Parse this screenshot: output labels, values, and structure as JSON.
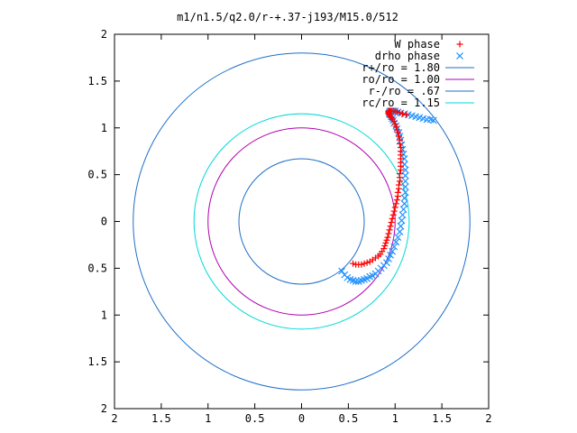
{
  "chart_data": {
    "type": "scatter",
    "title": "m1/n1.5/q2.0/r-+.37-j193/M15.0/512",
    "xlim": [
      -2,
      2
    ],
    "ylim": [
      -2,
      2
    ],
    "x_ticks": [
      -2,
      -1.5,
      -1,
      -0.5,
      0,
      0.5,
      1,
      1.5,
      2
    ],
    "y_ticks": [
      -2,
      -1.5,
      -1,
      -0.5,
      0,
      0.5,
      1,
      1.5,
      2
    ],
    "x_tick_labels": [
      "2",
      "1.5",
      "1",
      "0.5",
      "0",
      "0.5",
      "1",
      "1.5",
      "2"
    ],
    "y_tick_labels": [
      "2",
      "1.5",
      "1",
      "0.5",
      "0",
      "0.5",
      "1",
      "1.5",
      "2"
    ],
    "grid": false,
    "legend_position": "top-right",
    "series": [
      {
        "name": "W phase",
        "marker": "+",
        "color": "#ff0000",
        "x": [
          0.55,
          0.58,
          0.61,
          0.64,
          0.67,
          0.7,
          0.73,
          0.76,
          0.79,
          0.82,
          0.84,
          0.86,
          0.88,
          0.89,
          0.9,
          0.91,
          0.92,
          0.93,
          0.94,
          0.95,
          0.96,
          0.97,
          0.98,
          0.99,
          1.0,
          1.01,
          1.02,
          1.03,
          1.03,
          1.04,
          1.04,
          1.05,
          1.05,
          1.05,
          1.06,
          1.06,
          1.06,
          1.06,
          1.06,
          1.06,
          1.06,
          1.05,
          1.05,
          1.04,
          1.03,
          1.02,
          1.01,
          1.0,
          0.99,
          0.97,
          0.96,
          0.95,
          0.94,
          0.93,
          0.93,
          0.93,
          0.93,
          0.94,
          0.95,
          0.96,
          0.98,
          1.0,
          1.02,
          1.05,
          1.08,
          1.12
        ],
        "y": [
          -0.45,
          -0.46,
          -0.46,
          -0.46,
          -0.45,
          -0.44,
          -0.43,
          -0.41,
          -0.39,
          -0.37,
          -0.35,
          -0.32,
          -0.29,
          -0.26,
          -0.23,
          -0.2,
          -0.17,
          -0.13,
          -0.09,
          -0.05,
          -0.01,
          0.03,
          0.07,
          0.11,
          0.15,
          0.19,
          0.23,
          0.27,
          0.31,
          0.35,
          0.39,
          0.43,
          0.47,
          0.51,
          0.55,
          0.59,
          0.63,
          0.67,
          0.71,
          0.75,
          0.79,
          0.83,
          0.87,
          0.91,
          0.95,
          0.98,
          1.01,
          1.04,
          1.07,
          1.09,
          1.11,
          1.12,
          1.14,
          1.15,
          1.16,
          1.17,
          1.18,
          1.18,
          1.18,
          1.18,
          1.18,
          1.18,
          1.17,
          1.16,
          1.15,
          1.14
        ]
      },
      {
        "name": "drho phase",
        "marker": "x",
        "color": "#1e90ff",
        "x": [
          0.43,
          0.46,
          0.49,
          0.52,
          0.55,
          0.58,
          0.61,
          0.64,
          0.67,
          0.7,
          0.73,
          0.76,
          0.79,
          0.82,
          0.85,
          0.88,
          0.91,
          0.93,
          0.95,
          0.97,
          0.99,
          1.01,
          1.03,
          1.05,
          1.06,
          1.07,
          1.08,
          1.09,
          1.1,
          1.1,
          1.11,
          1.11,
          1.11,
          1.11,
          1.11,
          1.1,
          1.1,
          1.09,
          1.08,
          1.07,
          1.06,
          1.05,
          1.04,
          1.02,
          1.01,
          0.99,
          0.98,
          0.97,
          0.96,
          0.95,
          0.94,
          0.94,
          0.94,
          0.95,
          0.96,
          0.98,
          1.0,
          1.03,
          1.06,
          1.1,
          1.14,
          1.18,
          1.22,
          1.26,
          1.3,
          1.34,
          1.38,
          1.41
        ],
        "y": [
          -0.53,
          -0.57,
          -0.6,
          -0.62,
          -0.63,
          -0.64,
          -0.64,
          -0.63,
          -0.62,
          -0.61,
          -0.59,
          -0.58,
          -0.56,
          -0.53,
          -0.5,
          -0.47,
          -0.44,
          -0.4,
          -0.36,
          -0.32,
          -0.27,
          -0.22,
          -0.17,
          -0.11,
          -0.05,
          0.01,
          0.07,
          0.13,
          0.19,
          0.25,
          0.31,
          0.37,
          0.43,
          0.49,
          0.55,
          0.61,
          0.67,
          0.72,
          0.77,
          0.82,
          0.87,
          0.91,
          0.95,
          0.99,
          1.02,
          1.05,
          1.08,
          1.1,
          1.12,
          1.14,
          1.15,
          1.16,
          1.17,
          1.18,
          1.18,
          1.18,
          1.18,
          1.17,
          1.16,
          1.15,
          1.14,
          1.13,
          1.12,
          1.11,
          1.1,
          1.09,
          1.09,
          1.08
        ]
      },
      {
        "name": "r+/ro = 1.80",
        "type": "circle",
        "radius": 1.8,
        "color": "#1e6fc8"
      },
      {
        "name": "ro/ro = 1.00",
        "type": "circle",
        "radius": 1.0,
        "color": "#b000b0"
      },
      {
        "name": "r-/ro = .67",
        "type": "circle",
        "radius": 0.67,
        "color": "#1e6fc8"
      },
      {
        "name": "rc/ro = 1.15",
        "type": "circle",
        "radius": 1.15,
        "color": "#00d8d8"
      }
    ]
  }
}
